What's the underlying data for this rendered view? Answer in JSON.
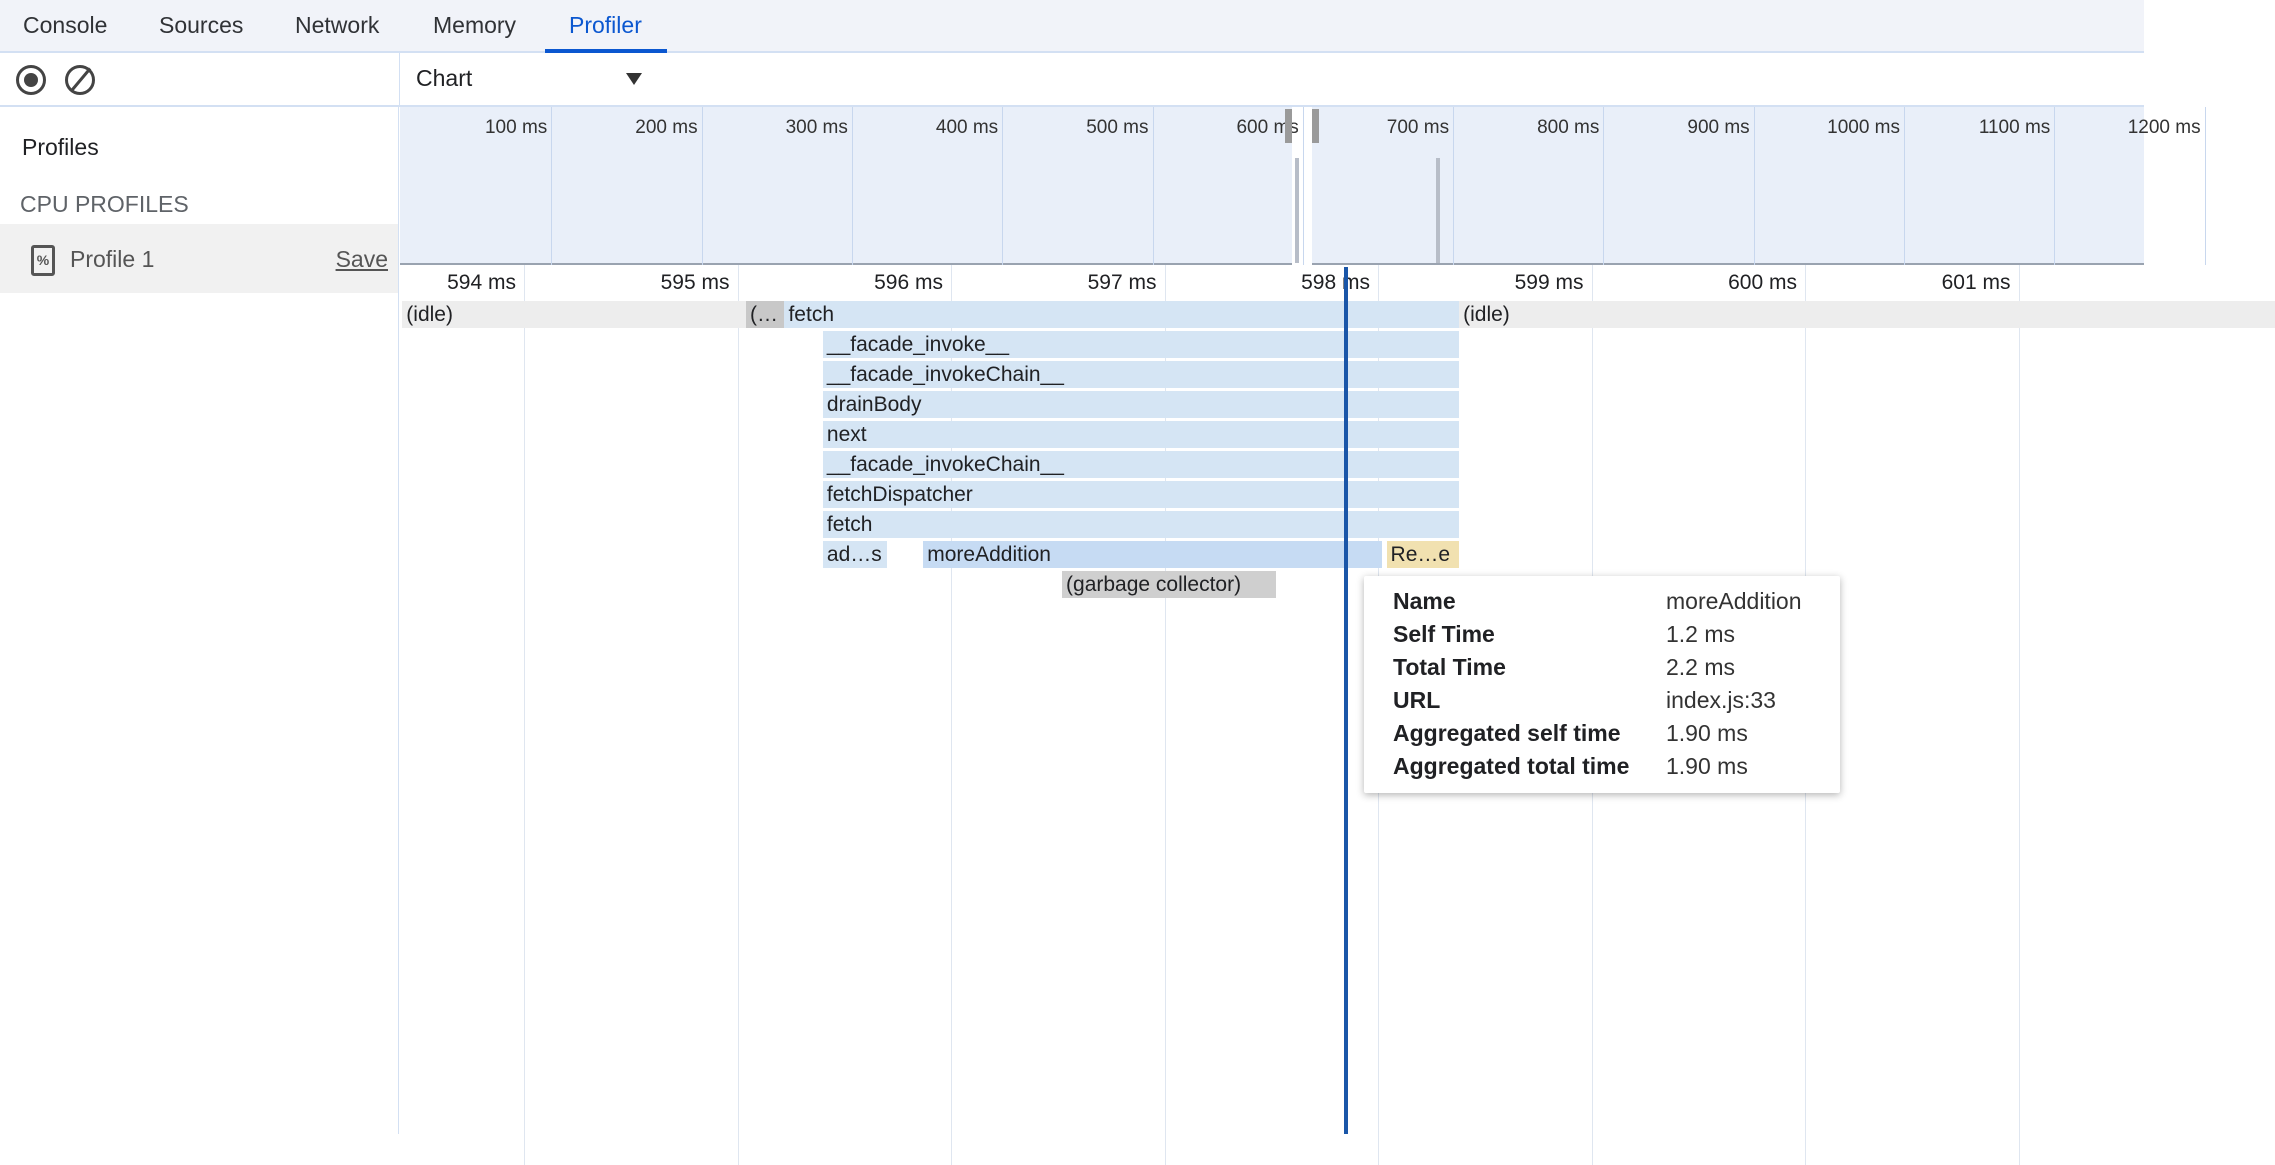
{
  "tabs": [
    {
      "label": "Console"
    },
    {
      "label": "Sources"
    },
    {
      "label": "Network"
    },
    {
      "label": "Memory"
    },
    {
      "label": "Profiler",
      "active": true
    }
  ],
  "toolbar": {
    "record_icon": "record-icon",
    "clear_icon": "clear-icon",
    "view_select": "Chart"
  },
  "sidebar": {
    "title": "Profiles",
    "section": "CPU PROFILES",
    "profile": {
      "name": "Profile 1",
      "save": "Save",
      "icon": "cpu-profile-file-icon"
    }
  },
  "overview": {
    "ticks": [
      "100 ms",
      "200 ms",
      "300 ms",
      "400 ms",
      "500 ms",
      "600 ms",
      "700 ms",
      "800 ms",
      "900 ms",
      "1000 ms",
      "1100 ms",
      "1200 ms"
    ],
    "tick_values": [
      100,
      200,
      300,
      400,
      500,
      600,
      700,
      800,
      900,
      1000,
      1100,
      1200
    ],
    "selection_ms": [
      593,
      606
    ],
    "activity_ms": [
      596,
      690
    ]
  },
  "ruler": {
    "ticks": [
      "594 ms",
      "595 ms",
      "596 ms",
      "597 ms",
      "598 ms",
      "599 ms",
      "600 ms",
      "601 ms"
    ],
    "tick_values": [
      594,
      595,
      596,
      597,
      598,
      599,
      600,
      601
    ]
  },
  "flame": {
    "blocks": [
      {
        "name": "(idle)",
        "row": 0,
        "start": 593.43,
        "end": 595.04,
        "kind": "idle"
      },
      {
        "name": "(…",
        "row": 0,
        "start": 595.04,
        "end": 595.22,
        "kind": "gray"
      },
      {
        "name": "fetch",
        "row": 0,
        "start": 595.22,
        "end": 598.38,
        "kind": "js"
      },
      {
        "name": "(idle)",
        "row": 0,
        "start": 598.38,
        "end": 602.2,
        "kind": "idle"
      },
      {
        "name": "__facade_invoke__",
        "row": 1,
        "start": 595.4,
        "end": 598.38,
        "kind": "js"
      },
      {
        "name": "__facade_invokeChain__",
        "row": 2,
        "start": 595.4,
        "end": 598.38,
        "kind": "js"
      },
      {
        "name": "drainBody",
        "row": 3,
        "start": 595.4,
        "end": 598.38,
        "kind": "js"
      },
      {
        "name": "next",
        "row": 4,
        "start": 595.4,
        "end": 598.38,
        "kind": "js"
      },
      {
        "name": "__facade_invokeChain__",
        "row": 5,
        "start": 595.4,
        "end": 598.38,
        "kind": "js"
      },
      {
        "name": "fetchDispatcher",
        "row": 6,
        "start": 595.4,
        "end": 598.38,
        "kind": "js"
      },
      {
        "name": "fetch",
        "row": 7,
        "start": 595.4,
        "end": 598.38,
        "kind": "js"
      },
      {
        "name": "ad…s",
        "row": 8,
        "start": 595.4,
        "end": 595.7,
        "kind": "js"
      },
      {
        "name": "moreAddition",
        "row": 8,
        "start": 595.87,
        "end": 598.02,
        "kind": "selected"
      },
      {
        "name": "Re…e",
        "row": 8,
        "start": 598.04,
        "end": 598.38,
        "kind": "native"
      },
      {
        "name": "(garbage collector)",
        "row": 9,
        "start": 596.52,
        "end": 597.52,
        "kind": "gc"
      }
    ],
    "cursor_ms": 597.85,
    "colors": {
      "idle": "#ededed",
      "gray": "#c8c8c8",
      "js": "#d5e5f4",
      "selected": "#c6dbf3",
      "native": "#f1e1b0",
      "gc": "#cfcfcf",
      "cursor": "#1a56a8"
    }
  },
  "tooltip": {
    "rows": [
      {
        "key": "Name",
        "value": "moreAddition"
      },
      {
        "key": "Self Time",
        "value": "1.2 ms"
      },
      {
        "key": "Total Time",
        "value": "2.2 ms"
      },
      {
        "key": "URL",
        "value": "index.js:33"
      },
      {
        "key": "Aggregated self time",
        "value": "1.90 ms"
      },
      {
        "key": "Aggregated total time",
        "value": "1.90 ms"
      }
    ]
  }
}
